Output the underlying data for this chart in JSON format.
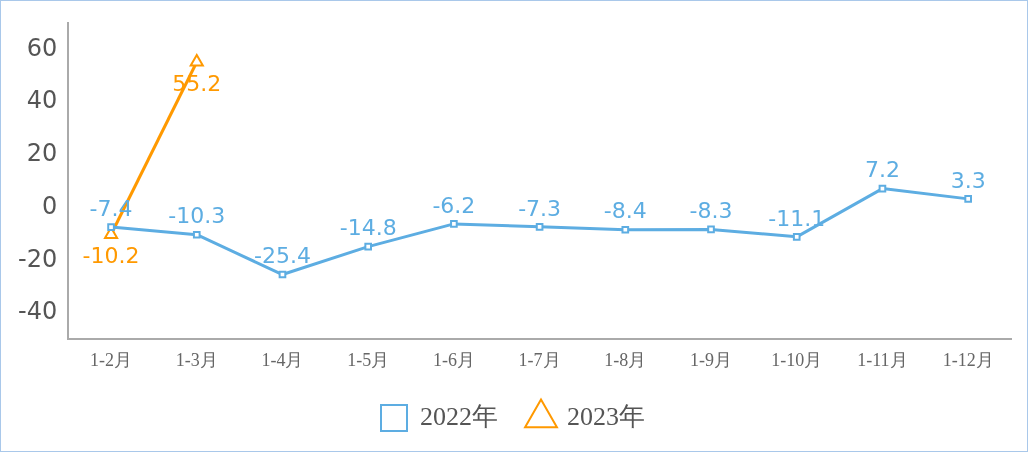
{
  "chart_data": {
    "type": "line",
    "categories": [
      "1-2月",
      "1-3月",
      "1-4月",
      "1-5月",
      "1-6月",
      "1-7月",
      "1-8月",
      "1-9月",
      "1-10月",
      "1-11月",
      "1-12月"
    ],
    "series": [
      {
        "name": "2022年",
        "color": "#5dade2",
        "marker": "square",
        "values": [
          -7.4,
          -10.3,
          -25.4,
          -14.8,
          -6.2,
          -7.3,
          -8.4,
          -8.3,
          -11.1,
          7.2,
          3.3
        ]
      },
      {
        "name": "2023年",
        "color": "#ff9900",
        "marker": "triangle",
        "values": [
          -10.2,
          55.2,
          null,
          null,
          null,
          null,
          null,
          null,
          null,
          null,
          null
        ]
      }
    ],
    "ylim": [
      -50,
      70
    ],
    "yticks": [
      -40,
      -20,
      0,
      20,
      40,
      60
    ],
    "grid": false,
    "legend": "bottom",
    "data_labels": true
  }
}
